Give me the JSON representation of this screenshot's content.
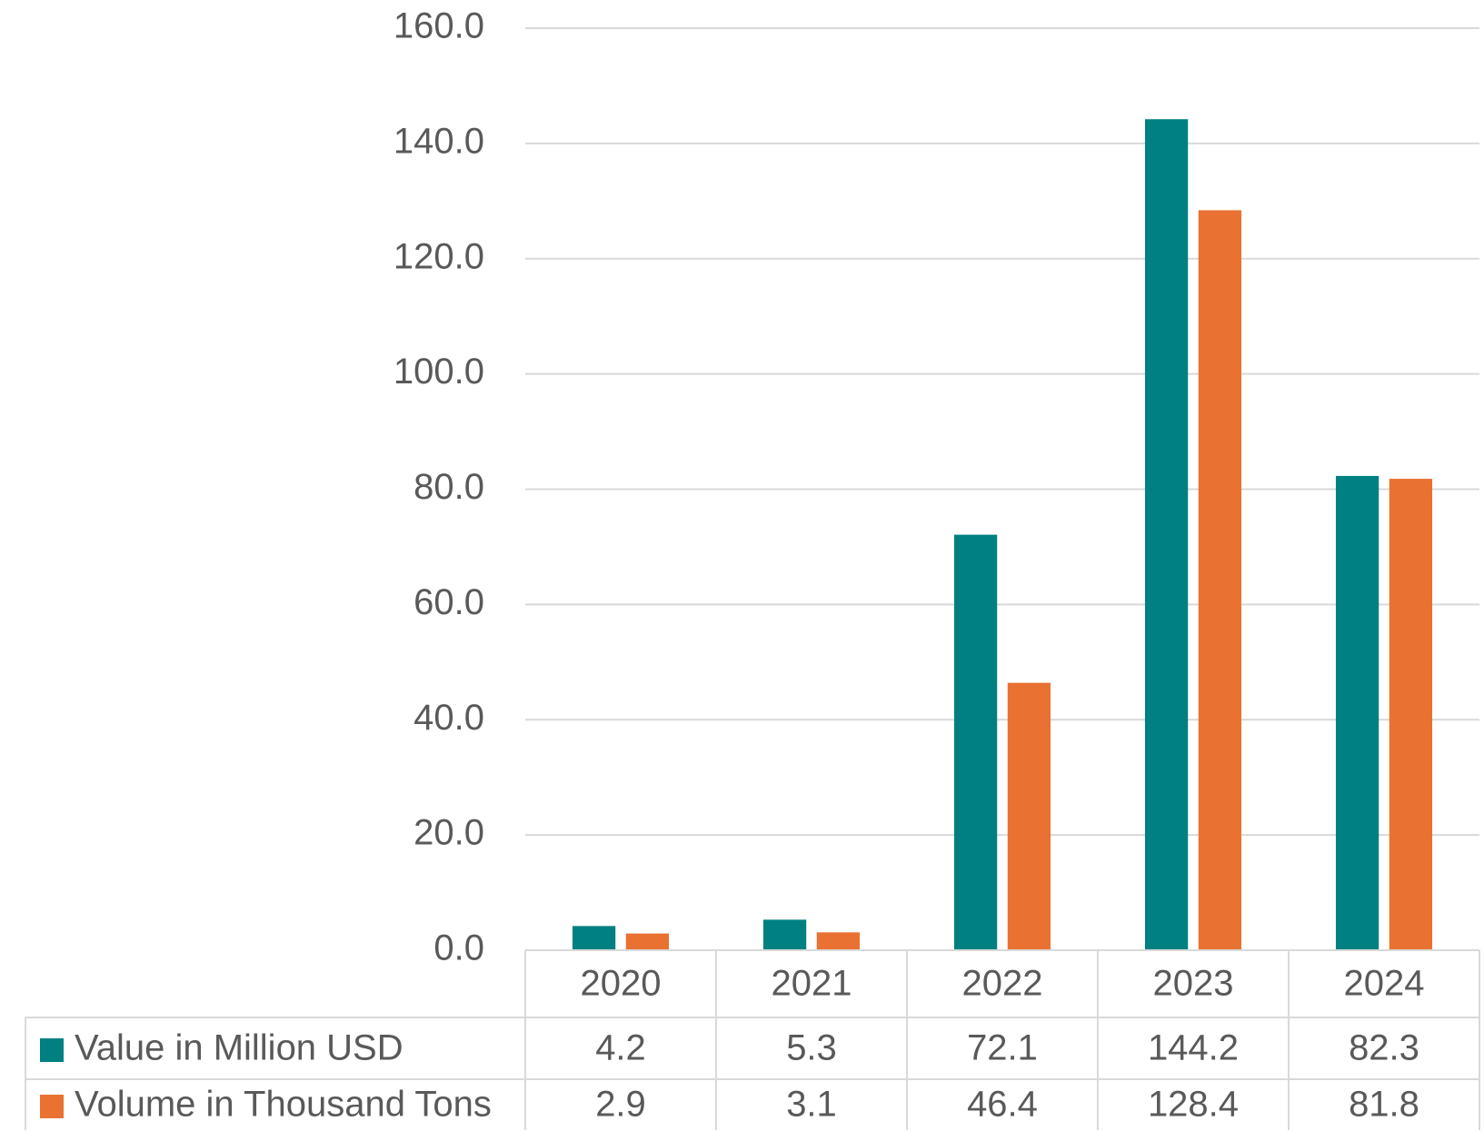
{
  "chart_data": {
    "type": "bar",
    "categories": [
      "2020",
      "2021",
      "2022",
      "2023",
      "2024"
    ],
    "series": [
      {
        "name": "Value in Million USD",
        "color": "#008080",
        "values": [
          4.2,
          5.3,
          72.1,
          144.2,
          82.3
        ]
      },
      {
        "name": "Volume in Thousand Tons",
        "color": "#E97132",
        "values": [
          2.9,
          3.1,
          46.4,
          128.4,
          81.8
        ]
      }
    ],
    "ylim": [
      0,
      160
    ],
    "yticks": [
      {
        "value": 0,
        "label": "0.0"
      },
      {
        "value": 20,
        "label": "20.0"
      },
      {
        "value": 40,
        "label": "40.0"
      },
      {
        "value": 60,
        "label": "60.0"
      },
      {
        "value": 80,
        "label": "80.0"
      },
      {
        "value": 100,
        "label": "100.0"
      },
      {
        "value": 120,
        "label": "120.0"
      },
      {
        "value": 140,
        "label": "140.0"
      },
      {
        "value": 160,
        "label": "160.0"
      }
    ],
    "grid": true,
    "data_table": true
  }
}
